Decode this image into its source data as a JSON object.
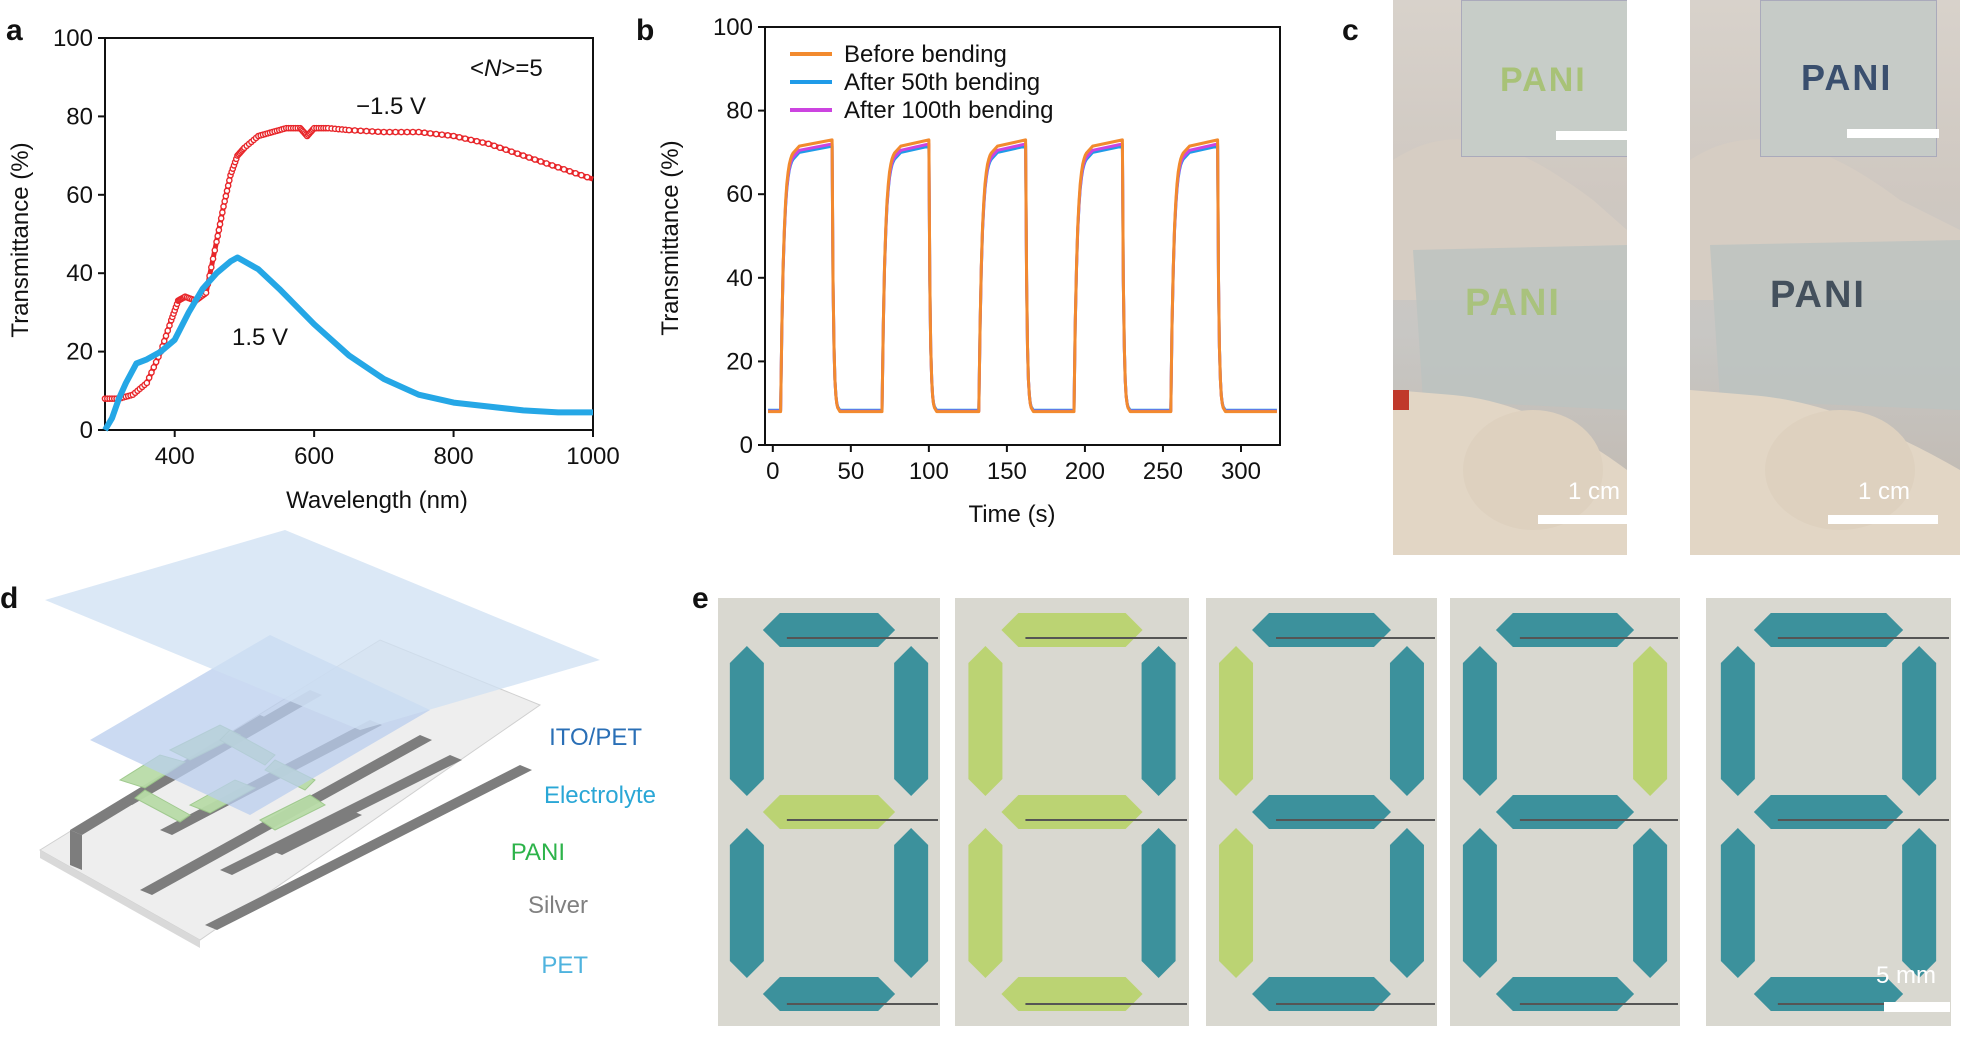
{
  "panels": {
    "a": "a",
    "b": "b",
    "c": "c",
    "d": "d",
    "e": "e"
  },
  "chart_data": [
    {
      "type": "line",
      "xlabel": "Wavelength (nm)",
      "ylabel": "Transmittance (%)",
      "xlim": [
        300,
        1000
      ],
      "ylim": [
        0,
        100
      ],
      "xticks": [
        400,
        600,
        800,
        1000
      ],
      "yticks": [
        0,
        20,
        40,
        60,
        80,
        100
      ],
      "annotation": "<N>=5",
      "annotation_parts": [
        "<",
        "N",
        ">=5"
      ],
      "series": [
        {
          "name": "−1.5 V",
          "color": "#e8262a",
          "marker": "open-circle",
          "x": [
            300,
            320,
            340,
            360,
            380,
            395,
            405,
            415,
            430,
            445,
            460,
            470,
            480,
            490,
            500,
            520,
            540,
            560,
            580,
            590,
            600,
            620,
            650,
            700,
            750,
            800,
            850,
            900,
            950,
            1000
          ],
          "y": [
            8,
            8,
            9,
            12,
            20,
            28,
            33,
            34,
            33,
            35,
            48,
            57,
            65,
            70,
            72,
            75,
            76,
            77,
            77,
            75,
            77,
            77,
            76.5,
            76,
            76,
            75,
            73,
            70,
            67,
            64
          ]
        },
        {
          "name": "1.5 V",
          "color": "#25a7e6",
          "marker": "none",
          "x": [
            300,
            310,
            320,
            330,
            345,
            360,
            380,
            400,
            420,
            440,
            460,
            480,
            490,
            500,
            520,
            550,
            600,
            650,
            700,
            750,
            800,
            850,
            900,
            950,
            1000
          ],
          "y": [
            0,
            3,
            8,
            12,
            17,
            18,
            20,
            23,
            30,
            36,
            40,
            43,
            44,
            43,
            41,
            36,
            27,
            19,
            13,
            9,
            7,
            6,
            5,
            4.5,
            4.5
          ]
        }
      ]
    },
    {
      "type": "line",
      "xlabel": "Time (s)",
      "ylabel": "Transmittance (%)",
      "xlim": [
        -5,
        325
      ],
      "ylim": [
        0,
        100
      ],
      "xticks": [
        0,
        50,
        100,
        150,
        200,
        250,
        300
      ],
      "yticks": [
        0,
        20,
        40,
        60,
        80,
        100
      ],
      "cycles": {
        "on_start": [
          5,
          70,
          132,
          193,
          255
        ],
        "on_end": [
          38,
          100,
          162,
          224,
          285
        ],
        "period": 62
      },
      "series": [
        {
          "name": "Before bending",
          "color": "#f28a2e",
          "low": 8,
          "high": 73
        },
        {
          "name": "After 50th bending",
          "color": "#1f9be8",
          "low": 8.3,
          "high": 71.5
        },
        {
          "name": "After 100th bending",
          "color": "#cc44e0",
          "low": 8.1,
          "high": 72
        }
      ]
    }
  ],
  "photo_c": {
    "scale_left": "1 cm",
    "scale_right": "1 cm",
    "inset_text_left": "PANI",
    "inset_text_right": "PANI",
    "main_text_left": "PANI",
    "main_text_right": "PANI"
  },
  "diagram_d": {
    "layers": [
      {
        "label": "ITO/PET",
        "color": "#2a6fb6"
      },
      {
        "label": "Electrolyte",
        "color": "#2aa7d6"
      },
      {
        "label": "PANI",
        "color": "#2db34a"
      },
      {
        "label": "Silver",
        "color": "#808080"
      },
      {
        "label": "PET",
        "color": "#4fb3de"
      }
    ]
  },
  "photo_e": {
    "scale": "5 mm",
    "colors": {
      "blue": "#2f8b97",
      "green": "#b9d36a",
      "bg": "#d9d8d0"
    },
    "digits": [
      {
        "segments": {
          "top": "blue",
          "upper_left": "blue",
          "upper_right": "blue",
          "middle": "green",
          "lower_left": "blue",
          "lower_right": "blue",
          "bottom": "blue"
        }
      },
      {
        "segments": {
          "top": "green",
          "upper_left": "green",
          "upper_right": "blue",
          "middle": "green",
          "lower_left": "green",
          "lower_right": "blue",
          "bottom": "green"
        }
      },
      {
        "segments": {
          "top": "blue",
          "upper_left": "green",
          "upper_right": "blue",
          "middle": "blue",
          "lower_left": "green",
          "lower_right": "blue",
          "bottom": "blue"
        }
      },
      {
        "segments": {
          "top": "blue",
          "upper_left": "blue",
          "upper_right": "green",
          "middle": "blue",
          "lower_left": "blue",
          "lower_right": "blue",
          "bottom": "blue"
        }
      },
      {
        "segments": {
          "top": "blue",
          "upper_left": "blue",
          "upper_right": "blue",
          "middle": "blue",
          "lower_left": "blue",
          "lower_right": "blue",
          "bottom": "blue"
        }
      }
    ]
  }
}
